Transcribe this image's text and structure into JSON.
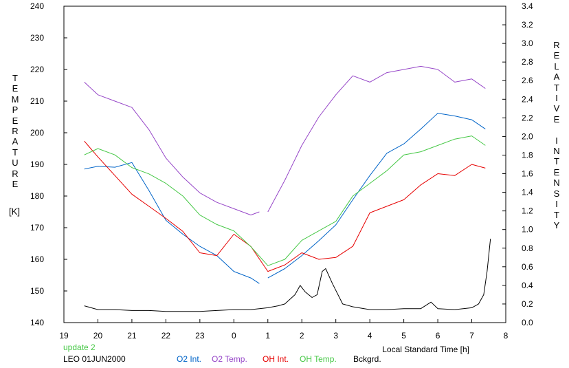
{
  "chart_data": {
    "type": "line",
    "title": "",
    "left_axis": {
      "label": "TEMPERATURE",
      "unit": "[K]",
      "ylim": [
        140,
        240
      ],
      "ticks": [
        "140",
        "150",
        "160",
        "170",
        "180",
        "190",
        "200",
        "210",
        "220",
        "230",
        "240"
      ]
    },
    "right_axis": {
      "label": "RELATIVE INTENSITY",
      "ylim": [
        0.0,
        3.4
      ],
      "ticks": [
        "0.0",
        "0.2",
        "0.4",
        "0.6",
        "0.8",
        "1.0",
        "1.2",
        "1.4",
        "1.6",
        "1.8",
        "2.0",
        "2.2",
        "2.4",
        "2.6",
        "2.8",
        "3.0",
        "3.2",
        "3.4"
      ]
    },
    "x_axis": {
      "label": "Local Standard Time [h]",
      "xlim": [
        19,
        8
      ],
      "ticks": [
        "19",
        "20",
        "21",
        "22",
        "23",
        "0",
        "1",
        "2",
        "3",
        "4",
        "5",
        "6",
        "7",
        "8"
      ]
    },
    "grid": false,
    "legend": "bottom",
    "series": [
      {
        "name": "O2 Int.",
        "axis": "right",
        "color": "#0064c8",
        "x": [
          19.6,
          20.0,
          20.5,
          21.0,
          21.5,
          22.0,
          22.5,
          23.0,
          23.5,
          0.0,
          0.5,
          0.75
        ],
        "y": [
          1.65,
          1.68,
          1.67,
          1.72,
          1.42,
          1.1,
          0.95,
          0.82,
          0.72,
          0.55,
          0.48,
          0.42
        ]
      },
      {
        "name": "O2 Int.",
        "axis": "right",
        "color": "#0064c8",
        "x": [
          1.0,
          1.5,
          2.0,
          2.5,
          3.0,
          3.5,
          4.0,
          4.5,
          5.0,
          5.5,
          6.0,
          6.5,
          7.0,
          7.4
        ],
        "y": [
          0.48,
          0.58,
          0.72,
          0.88,
          1.05,
          1.32,
          1.58,
          1.82,
          1.92,
          2.08,
          2.25,
          2.22,
          2.18,
          2.08
        ]
      },
      {
        "name": "O2 Temp.",
        "axis": "left",
        "color": "#9646c8",
        "x": [
          19.6,
          20.0,
          20.5,
          21.0,
          21.5,
          22.0,
          22.5,
          23.0,
          23.5,
          0.0,
          0.5,
          0.75
        ],
        "y": [
          216,
          212,
          210,
          208,
          201,
          192,
          186,
          181,
          178,
          176,
          174,
          175
        ]
      },
      {
        "name": "O2 Temp.",
        "axis": "left",
        "color": "#9646c8",
        "x": [
          1.0,
          1.5,
          2.0,
          2.5,
          3.0,
          3.5,
          4.0,
          4.5,
          5.0,
          5.5,
          6.0,
          6.5,
          7.0,
          7.4
        ],
        "y": [
          175,
          185,
          196,
          205,
          212,
          218,
          216,
          219,
          220,
          221,
          220,
          216,
          217,
          214
        ]
      },
      {
        "name": "OH Int.",
        "axis": "right",
        "color": "#e60000",
        "x": [
          19.6,
          20.0,
          20.5,
          21.0,
          21.5,
          22.0,
          22.5,
          23.0,
          23.5,
          0.0,
          0.5,
          1.0,
          1.5,
          2.0,
          2.5,
          3.0,
          3.5,
          4.0,
          4.5,
          5.0,
          5.5,
          6.0,
          6.5,
          7.0,
          7.4
        ],
        "y": [
          1.95,
          1.78,
          1.58,
          1.38,
          1.25,
          1.12,
          0.98,
          0.75,
          0.72,
          0.95,
          0.82,
          0.55,
          0.62,
          0.75,
          0.68,
          0.7,
          0.82,
          1.18,
          1.25,
          1.32,
          1.48,
          1.6,
          1.58,
          1.7,
          1.66
        ]
      },
      {
        "name": "OH Temp.",
        "axis": "left",
        "color": "#46c846",
        "x": [
          19.6,
          20.0,
          20.5,
          21.0,
          21.5,
          22.0,
          22.5,
          23.0,
          23.5,
          0.0,
          0.5,
          1.0,
          1.5,
          2.0,
          2.5,
          3.0,
          3.5,
          4.0,
          4.5,
          5.0,
          5.5,
          6.0,
          6.5,
          7.0,
          7.4
        ],
        "y": [
          193,
          195,
          193,
          189,
          187,
          184,
          180,
          174,
          171,
          169,
          164,
          158,
          160,
          166,
          169,
          172,
          180,
          184,
          188,
          193,
          194,
          196,
          198,
          199,
          196
        ]
      },
      {
        "name": "Bckgrd.",
        "axis": "right",
        "color": "#000000",
        "x": [
          19.6,
          19.8,
          20.0,
          20.5,
          21.0,
          21.5,
          22.0,
          22.5,
          23.0,
          23.5,
          0.0,
          0.5,
          1.0,
          1.3,
          1.5,
          1.8,
          1.95,
          2.1,
          2.3,
          2.45,
          2.6,
          2.7,
          2.9,
          3.2,
          3.5,
          4.0,
          4.5,
          5.0,
          5.5,
          5.8,
          6.0,
          6.5,
          7.0,
          7.2,
          7.35,
          7.45,
          7.55
        ],
        "y": [
          0.18,
          0.16,
          0.14,
          0.14,
          0.13,
          0.13,
          0.12,
          0.12,
          0.12,
          0.13,
          0.14,
          0.14,
          0.16,
          0.18,
          0.2,
          0.3,
          0.4,
          0.33,
          0.27,
          0.3,
          0.55,
          0.58,
          0.42,
          0.2,
          0.17,
          0.14,
          0.14,
          0.15,
          0.15,
          0.22,
          0.15,
          0.14,
          0.16,
          0.2,
          0.3,
          0.55,
          0.9
        ]
      }
    ],
    "legend_entries": [
      {
        "label": "O2 Int.",
        "color": "#0064c8"
      },
      {
        "label": "O2 Temp.",
        "color": "#9646c8"
      },
      {
        "label": "OH Int.",
        "color": "#e60000"
      },
      {
        "label": "OH Temp.",
        "color": "#46c846"
      },
      {
        "label": "Bckgrd.",
        "color": "#000000"
      }
    ]
  },
  "footer": {
    "status": "update 2",
    "status_color": "#46c846",
    "station_date": "LEO 01JUN2000"
  }
}
